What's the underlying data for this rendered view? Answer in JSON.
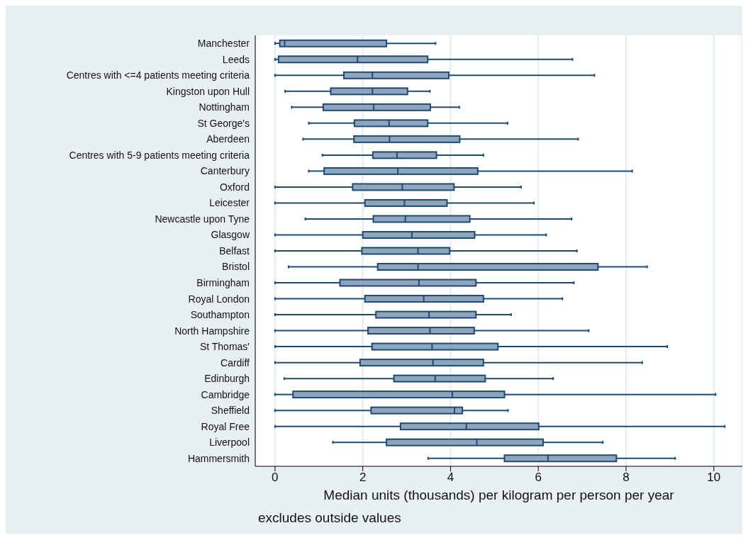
{
  "chart_data": {
    "type": "box",
    "orientation": "horizontal",
    "xlabel": "Median units (thousands) per kilogram per person per year",
    "annotations": [
      "excludes outside values"
    ],
    "categories": [
      "Manchester",
      "Leeds",
      "Centres with <=4 patients meeting criteria",
      "Kingston upon Hull",
      "Nottingham",
      "St George's",
      "Aberdeen",
      "Centres with 5-9 patients meeting criteria",
      "Canterbury",
      "Oxford",
      "Leicester",
      "Newcastle upon Tyne",
      "Glasgow",
      "Belfast",
      "Bristol",
      "Birmingham",
      "Royal London",
      "Southampton",
      "North Hampshire",
      "St Thomas'",
      "Cardiff",
      "Edinburgh",
      "Cambridge",
      "Sheffield",
      "Royal Free",
      "Liverpool",
      "Hammersmith"
    ],
    "series": [
      {
        "color": "#8fa5ba",
        "boxes": [
          {
            "low": 0,
            "q1": 0.11,
            "median": 0.22,
            "q3": 2.54,
            "high": 3.66
          },
          {
            "low": 0,
            "q1": 0.08,
            "median": 1.88,
            "q3": 3.48,
            "high": 6.78
          },
          {
            "low": 0,
            "q1": 1.57,
            "median": 2.22,
            "q3": 3.96,
            "high": 7.28
          },
          {
            "low": 0.23,
            "q1": 1.27,
            "median": 2.22,
            "q3": 3.02,
            "high": 3.53
          },
          {
            "low": 0.38,
            "q1": 1.1,
            "median": 2.25,
            "q3": 3.54,
            "high": 4.2
          },
          {
            "low": 0.77,
            "q1": 1.81,
            "median": 2.6,
            "q3": 3.48,
            "high": 5.3
          },
          {
            "low": 0.64,
            "q1": 1.8,
            "median": 2.61,
            "q3": 4.21,
            "high": 6.91
          },
          {
            "low": 1.08,
            "q1": 2.23,
            "median": 2.78,
            "q3": 3.68,
            "high": 4.75
          },
          {
            "low": 0.77,
            "q1": 1.12,
            "median": 2.8,
            "q3": 4.62,
            "high": 8.14
          },
          {
            "low": 0,
            "q1": 1.77,
            "median": 2.9,
            "q3": 4.08,
            "high": 5.61
          },
          {
            "low": 0,
            "q1": 2.05,
            "median": 2.95,
            "q3": 3.92,
            "high": 5.9
          },
          {
            "low": 0.69,
            "q1": 2.24,
            "median": 2.97,
            "q3": 4.44,
            "high": 6.76
          },
          {
            "low": 0,
            "q1": 2.0,
            "median": 3.12,
            "q3": 4.55,
            "high": 6.18
          },
          {
            "low": 0,
            "q1": 1.98,
            "median": 3.26,
            "q3": 3.98,
            "high": 6.88
          },
          {
            "low": 0.31,
            "q1": 2.34,
            "median": 3.26,
            "q3": 7.36,
            "high": 8.48
          },
          {
            "low": 0,
            "q1": 1.48,
            "median": 3.28,
            "q3": 4.58,
            "high": 6.81
          },
          {
            "low": 0,
            "q1": 2.05,
            "median": 3.39,
            "q3": 4.75,
            "high": 6.55
          },
          {
            "low": 0,
            "q1": 2.3,
            "median": 3.51,
            "q3": 4.58,
            "high": 5.38
          },
          {
            "low": 0,
            "q1": 2.12,
            "median": 3.53,
            "q3": 4.54,
            "high": 7.15
          },
          {
            "low": 0,
            "q1": 2.21,
            "median": 3.58,
            "q3": 5.08,
            "high": 8.94
          },
          {
            "low": 0,
            "q1": 1.94,
            "median": 3.6,
            "q3": 4.75,
            "high": 8.37
          },
          {
            "low": 0.21,
            "q1": 2.71,
            "median": 3.65,
            "q3": 4.79,
            "high": 6.34
          },
          {
            "low": 0,
            "q1": 0.41,
            "median": 4.04,
            "q3": 5.23,
            "high": 10.04
          },
          {
            "low": 0,
            "q1": 2.19,
            "median": 4.09,
            "q3": 4.27,
            "high": 5.31
          },
          {
            "low": 0,
            "q1": 2.86,
            "median": 4.36,
            "q3": 6.01,
            "high": 10.25
          },
          {
            "low": 1.32,
            "q1": 2.54,
            "median": 4.6,
            "q3": 6.11,
            "high": 7.47
          },
          {
            "low": 3.49,
            "q1": 5.23,
            "median": 6.22,
            "q3": 7.78,
            "high": 9.12
          }
        ]
      }
    ],
    "xlim": [
      -0.45,
      10.65
    ],
    "xticks": [
      0,
      2,
      4,
      6,
      8,
      10
    ],
    "grid": "x"
  }
}
